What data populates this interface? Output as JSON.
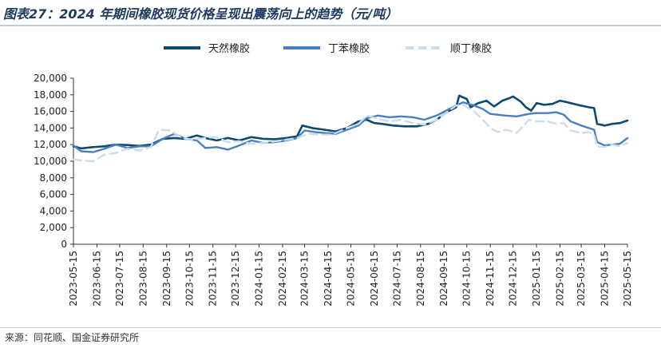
{
  "title": "图表27：2024 年期间橡胶现货价格呈现出震荡向上的趋势（元/吨）",
  "source": "来源：同花顺、国金证券研究所",
  "chart_data": {
    "type": "line",
    "ylim": [
      0,
      20000
    ],
    "y_ticks": [
      "0",
      "2,000",
      "4,000",
      "6,000",
      "8,000",
      "10,000",
      "12,000",
      "14,000",
      "16,000",
      "18,000",
      "20,000"
    ],
    "x_range": [
      "2023-05-15",
      "2025-05-15"
    ],
    "x_ticks": [
      "2023-05-15",
      "2023-06-15",
      "2023-07-15",
      "2023-08-15",
      "2023-09-15",
      "2023-10-15",
      "2023-11-15",
      "2023-12-15",
      "2024-01-15",
      "2024-02-15",
      "2024-03-15",
      "2024-04-15",
      "2024-05-15",
      "2024-06-15",
      "2024-07-15",
      "2024-08-15",
      "2024-09-15",
      "2024-10-15",
      "2024-11-15",
      "2024-12-15",
      "2025-01-15",
      "2025-02-15",
      "2025-03-15",
      "2025-04-15",
      "2025-05-15"
    ],
    "legend_position": "top",
    "grid": false,
    "series": [
      {
        "name": "天然橡胶",
        "color": "#0d4a6e",
        "style": "solid",
        "points": [
          [
            "2023-05-15",
            11800
          ],
          [
            "2023-05-25",
            11550
          ],
          [
            "2023-06-10",
            11700
          ],
          [
            "2023-06-25",
            11800
          ],
          [
            "2023-07-10",
            12000
          ],
          [
            "2023-07-25",
            11950
          ],
          [
            "2023-08-10",
            11850
          ],
          [
            "2023-08-25",
            12000
          ],
          [
            "2023-09-10",
            12700
          ],
          [
            "2023-09-25",
            12800
          ],
          [
            "2023-10-10",
            12700
          ],
          [
            "2023-10-25",
            13100
          ],
          [
            "2023-11-05",
            12800
          ],
          [
            "2023-11-20",
            12500
          ],
          [
            "2023-12-05",
            12800
          ],
          [
            "2023-12-20",
            12500
          ],
          [
            "2024-01-05",
            12900
          ],
          [
            "2024-01-20",
            12700
          ],
          [
            "2024-02-05",
            12650
          ],
          [
            "2024-02-20",
            12800
          ],
          [
            "2024-03-05",
            13000
          ],
          [
            "2024-03-12",
            14300
          ],
          [
            "2024-03-25",
            14000
          ],
          [
            "2024-04-10",
            13800
          ],
          [
            "2024-04-25",
            13600
          ],
          [
            "2024-05-10",
            14000
          ],
          [
            "2024-05-25",
            14800
          ],
          [
            "2024-06-05",
            15000
          ],
          [
            "2024-06-15",
            14600
          ],
          [
            "2024-06-25",
            14500
          ],
          [
            "2024-07-10",
            14300
          ],
          [
            "2024-07-25",
            14200
          ],
          [
            "2024-08-10",
            14200
          ],
          [
            "2024-08-25",
            14500
          ],
          [
            "2024-09-05",
            15000
          ],
          [
            "2024-09-20",
            16000
          ],
          [
            "2024-10-01",
            16500
          ],
          [
            "2024-10-05",
            17900
          ],
          [
            "2024-10-15",
            17500
          ],
          [
            "2024-10-20",
            16500
          ],
          [
            "2024-10-30",
            17000
          ],
          [
            "2024-11-10",
            17300
          ],
          [
            "2024-11-20",
            16600
          ],
          [
            "2024-12-01",
            17300
          ],
          [
            "2024-12-10",
            17600
          ],
          [
            "2024-12-15",
            17800
          ],
          [
            "2024-12-25",
            17200
          ],
          [
            "2025-01-01",
            16500
          ],
          [
            "2025-01-08",
            16100
          ],
          [
            "2025-01-15",
            17000
          ],
          [
            "2025-01-25",
            16800
          ],
          [
            "2025-02-05",
            16900
          ],
          [
            "2025-02-15",
            17300
          ],
          [
            "2025-02-25",
            17100
          ],
          [
            "2025-03-10",
            16800
          ],
          [
            "2025-03-25",
            16500
          ],
          [
            "2025-04-01",
            16400
          ],
          [
            "2025-04-05",
            14500
          ],
          [
            "2025-04-15",
            14300
          ],
          [
            "2025-04-25",
            14500
          ],
          [
            "2025-05-05",
            14600
          ],
          [
            "2025-05-15",
            14900
          ]
        ]
      },
      {
        "name": "丁苯橡胶",
        "color": "#4a7fbf",
        "style": "solid",
        "points": [
          [
            "2023-05-15",
            11900
          ],
          [
            "2023-05-25",
            11200
          ],
          [
            "2023-06-10",
            11100
          ],
          [
            "2023-06-25",
            11500
          ],
          [
            "2023-07-10",
            12000
          ],
          [
            "2023-07-25",
            11600
          ],
          [
            "2023-08-10",
            11800
          ],
          [
            "2023-08-25",
            11800
          ],
          [
            "2023-09-10",
            12700
          ],
          [
            "2023-09-25",
            13300
          ],
          [
            "2023-10-10",
            12700
          ],
          [
            "2023-10-25",
            12500
          ],
          [
            "2023-11-05",
            11600
          ],
          [
            "2023-11-20",
            11700
          ],
          [
            "2023-12-05",
            11400
          ],
          [
            "2023-12-20",
            11900
          ],
          [
            "2024-01-05",
            12500
          ],
          [
            "2024-01-20",
            12200
          ],
          [
            "2024-02-05",
            12300
          ],
          [
            "2024-02-20",
            12500
          ],
          [
            "2024-03-05",
            12800
          ],
          [
            "2024-03-15",
            13700
          ],
          [
            "2024-03-30",
            13500
          ],
          [
            "2024-04-10",
            13400
          ],
          [
            "2024-04-25",
            13300
          ],
          [
            "2024-05-10",
            13800
          ],
          [
            "2024-05-25",
            14300
          ],
          [
            "2024-06-05",
            15200
          ],
          [
            "2024-06-20",
            15500
          ],
          [
            "2024-07-05",
            15300
          ],
          [
            "2024-07-20",
            15400
          ],
          [
            "2024-08-05",
            15300
          ],
          [
            "2024-08-20",
            15000
          ],
          [
            "2024-09-05",
            15500
          ],
          [
            "2024-09-20",
            16200
          ],
          [
            "2024-10-01",
            16700
          ],
          [
            "2024-10-10",
            17100
          ],
          [
            "2024-10-25",
            16700
          ],
          [
            "2024-11-05",
            16300
          ],
          [
            "2024-11-15",
            15700
          ],
          [
            "2024-11-25",
            15600
          ],
          [
            "2024-12-05",
            15500
          ],
          [
            "2024-12-20",
            15400
          ],
          [
            "2025-01-05",
            15700
          ],
          [
            "2025-01-15",
            15800
          ],
          [
            "2025-01-30",
            15800
          ],
          [
            "2025-02-10",
            15900
          ],
          [
            "2025-02-20",
            15600
          ],
          [
            "2025-03-01",
            14800
          ],
          [
            "2025-03-15",
            14300
          ],
          [
            "2025-03-25",
            14000
          ],
          [
            "2025-04-01",
            13800
          ],
          [
            "2025-04-05",
            12300
          ],
          [
            "2025-04-15",
            11900
          ],
          [
            "2025-04-25",
            12000
          ],
          [
            "2025-05-05",
            12100
          ],
          [
            "2025-05-15",
            12800
          ]
        ]
      },
      {
        "name": "顺丁橡胶",
        "color": "#c9dcf0",
        "style": "dashed",
        "points": [
          [
            "2023-05-15",
            10200
          ],
          [
            "2023-05-25",
            10100
          ],
          [
            "2023-06-10",
            10000
          ],
          [
            "2023-06-25",
            10800
          ],
          [
            "2023-07-10",
            11000
          ],
          [
            "2023-07-25",
            11500
          ],
          [
            "2023-08-10",
            11300
          ],
          [
            "2023-08-25",
            11700
          ],
          [
            "2023-09-05",
            13800
          ],
          [
            "2023-09-20",
            13700
          ],
          [
            "2023-10-05",
            12800
          ],
          [
            "2023-10-20",
            12600
          ],
          [
            "2023-11-05",
            12800
          ],
          [
            "2023-11-20",
            12900
          ],
          [
            "2023-12-05",
            12300
          ],
          [
            "2023-12-20",
            12400
          ],
          [
            "2024-01-05",
            12100
          ],
          [
            "2024-01-20",
            12200
          ],
          [
            "2024-02-05",
            12400
          ],
          [
            "2024-02-20",
            12600
          ],
          [
            "2024-03-05",
            12800
          ],
          [
            "2024-03-20",
            13300
          ],
          [
            "2024-04-05",
            13200
          ],
          [
            "2024-04-20",
            13200
          ],
          [
            "2024-05-10",
            14000
          ],
          [
            "2024-05-25",
            14500
          ],
          [
            "2024-06-05",
            15500
          ],
          [
            "2024-06-20",
            15100
          ],
          [
            "2024-07-05",
            14800
          ],
          [
            "2024-07-20",
            15000
          ],
          [
            "2024-08-05",
            14600
          ],
          [
            "2024-08-20",
            14400
          ],
          [
            "2024-09-05",
            15000
          ],
          [
            "2024-09-20",
            16000
          ],
          [
            "2024-10-01",
            16700
          ],
          [
            "2024-10-10",
            16800
          ],
          [
            "2024-10-25",
            16000
          ],
          [
            "2024-11-05",
            15000
          ],
          [
            "2024-11-15",
            14000
          ],
          [
            "2024-11-25",
            13500
          ],
          [
            "2024-12-05",
            13800
          ],
          [
            "2024-12-20",
            13400
          ],
          [
            "2025-01-05",
            15000
          ],
          [
            "2025-01-15",
            14800
          ],
          [
            "2025-01-30",
            14800
          ],
          [
            "2025-02-10",
            14500
          ],
          [
            "2025-02-20",
            14600
          ],
          [
            "2025-03-01",
            13700
          ],
          [
            "2025-03-15",
            13400
          ],
          [
            "2025-03-25",
            13500
          ],
          [
            "2025-04-01",
            13200
          ],
          [
            "2025-04-05",
            11800
          ],
          [
            "2025-04-15",
            11700
          ],
          [
            "2025-04-25",
            12000
          ],
          [
            "2025-05-05",
            11800
          ],
          [
            "2025-05-15",
            12200
          ]
        ]
      }
    ]
  }
}
